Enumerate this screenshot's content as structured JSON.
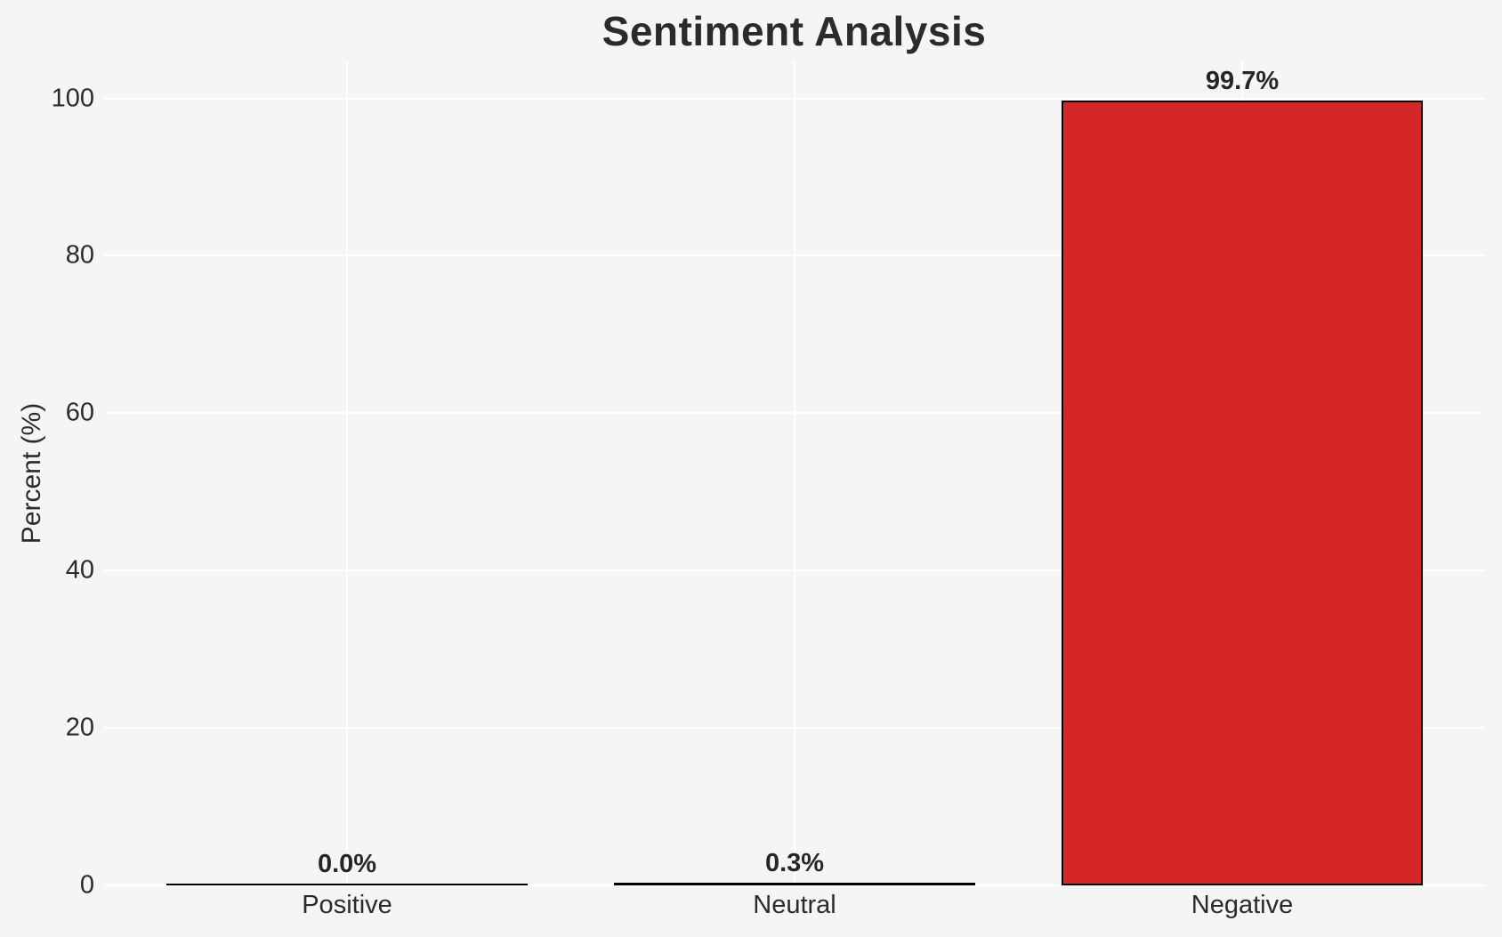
{
  "chart_data": {
    "type": "bar",
    "title": "Sentiment Analysis",
    "xlabel": "",
    "ylabel": "Percent (%)",
    "categories": [
      "Positive",
      "Neutral",
      "Negative"
    ],
    "values": [
      0.0,
      0.3,
      99.7
    ],
    "bar_labels": [
      "0.0%",
      "0.3%",
      "99.7%"
    ],
    "yticks": [
      0,
      20,
      40,
      60,
      80,
      100
    ],
    "ylim": [
      0,
      104.7
    ],
    "grid": true,
    "legend_position": "none",
    "colors": {
      "bar_fill": "#d62728",
      "bar_edge": "#000000",
      "grid": "#ffffff",
      "background": "#f5f5f6",
      "text": "#262626"
    }
  }
}
